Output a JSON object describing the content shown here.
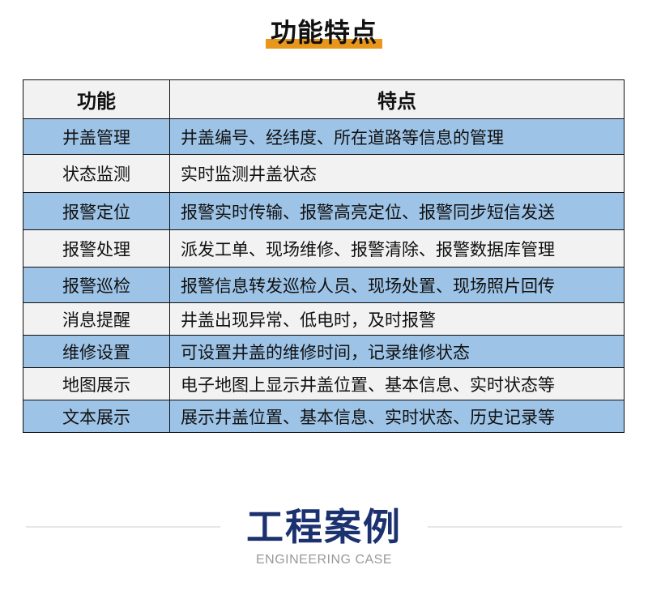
{
  "section_title": "功能特点",
  "colors": {
    "accent": "#e8961c",
    "row_blue": "#9dc3e6",
    "row_gray": "#f2f2f2",
    "case_title": "#1c3270"
  },
  "table": {
    "headers": [
      "功能",
      "特点"
    ],
    "rows": [
      {
        "feature": "井盖管理",
        "desc": "井盖编号、经纬度、所在道路等信息的管理",
        "h": 44
      },
      {
        "feature": "状态监测",
        "desc": "实时监测井盖状态",
        "h": 47
      },
      {
        "feature": "报警定位",
        "desc": "报警实时传输、报警高亮定位、报警同步短信发送",
        "h": 46
      },
      {
        "feature": "报警处理",
        "desc": "派发工单、现场维修、报警清除、报警数据库管理",
        "h": 46
      },
      {
        "feature": "报警巡检",
        "desc": "报警信息转发巡检人员、现场处置、现场照片回传",
        "h": 44
      },
      {
        "feature": "消息提醒",
        "desc": "井盖出现异常、低电时，及时报警",
        "h": 40
      },
      {
        "feature": "维修设置",
        "desc": "可设置井盖的维修时间，记录维修状态",
        "h": 40
      },
      {
        "feature": "地图展示",
        "desc": "电子地图上显示井盖位置、基本信息、实时状态等",
        "h": 40
      },
      {
        "feature": "文本展示",
        "desc": "展示井盖位置、基本信息、实时状态、历史记录等",
        "h": 40
      }
    ]
  },
  "case_section": {
    "title": "工程案例",
    "subtitle": "ENGINEERING CASE"
  }
}
